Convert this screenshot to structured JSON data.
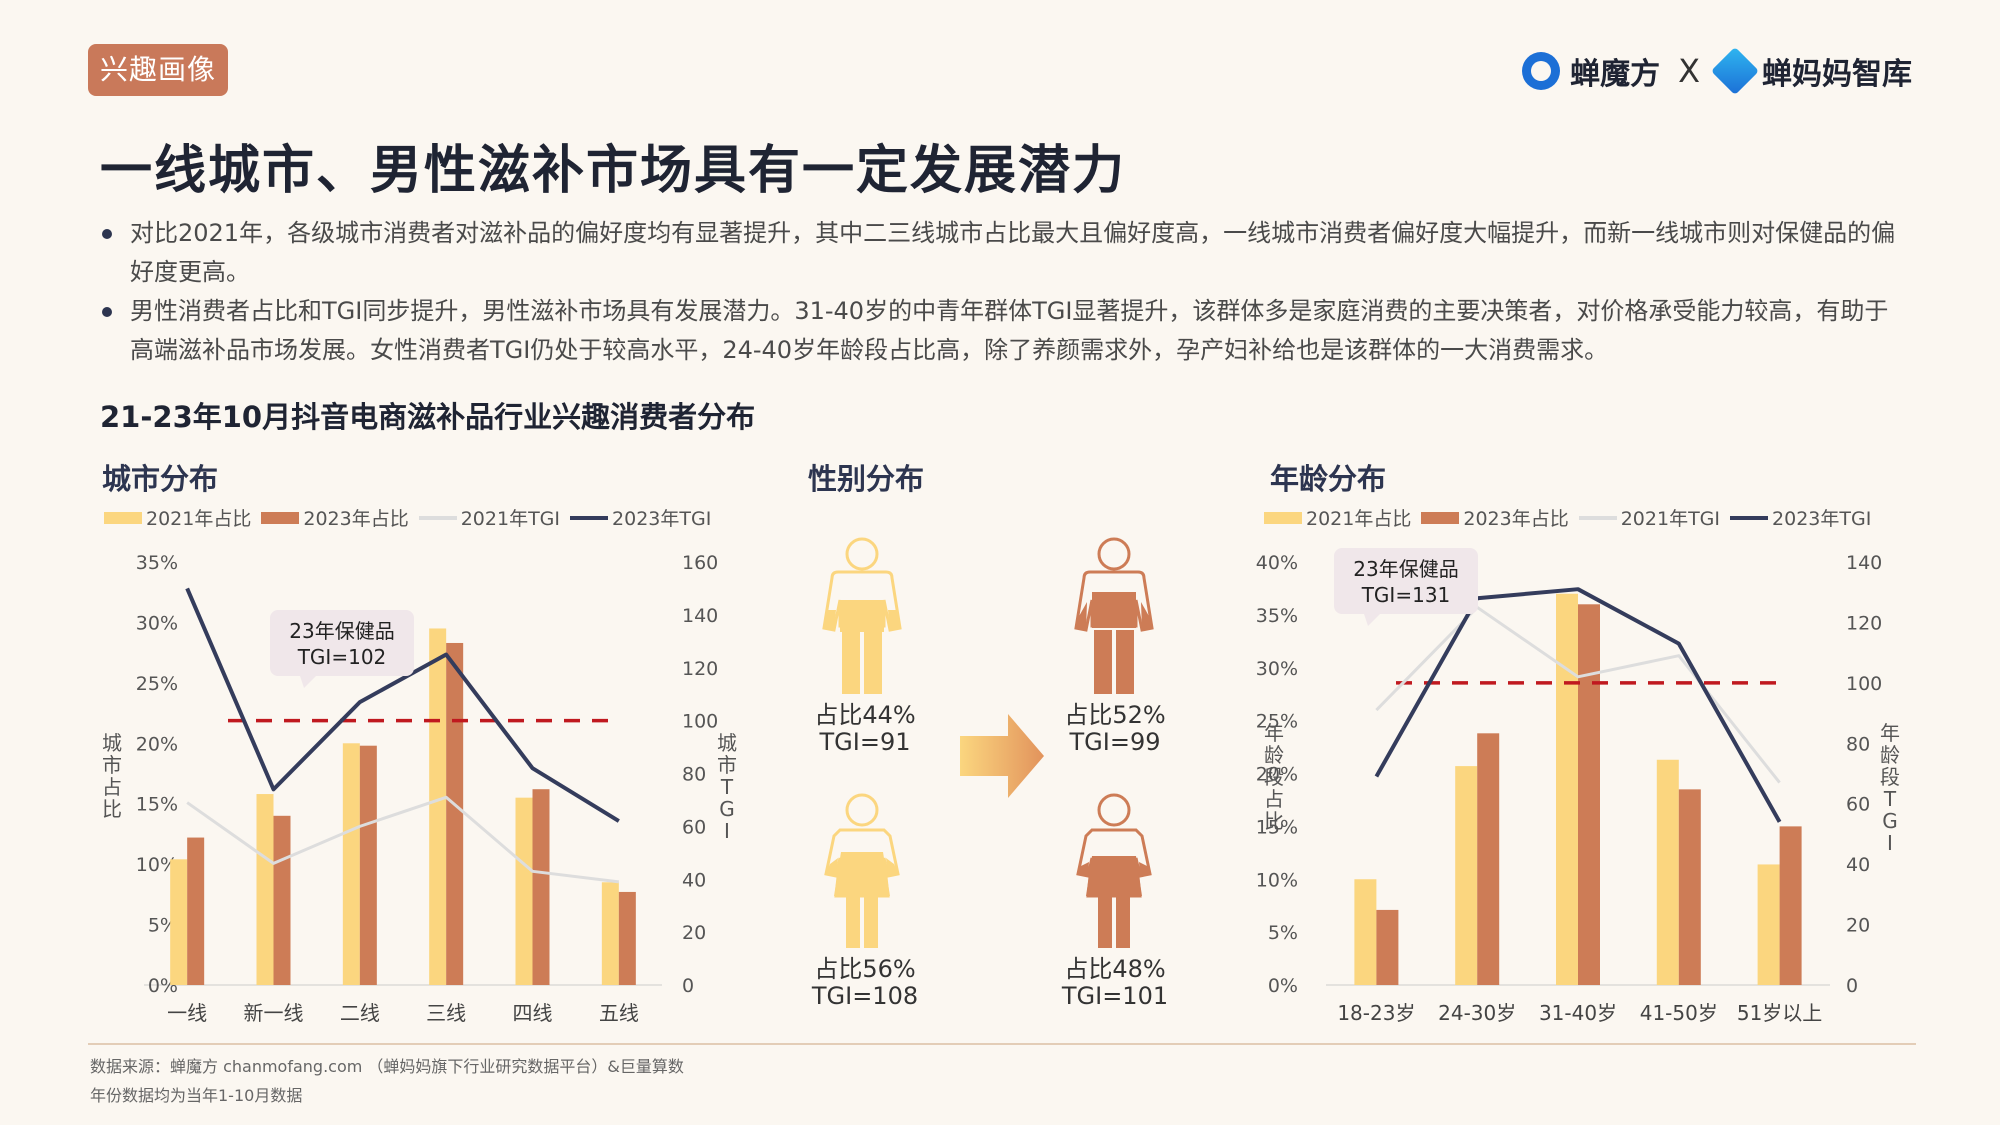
{
  "header": {
    "tag": "兴趣画像",
    "brand_left": "蝉魔方",
    "brand_sep": "X",
    "brand_right": "蝉妈妈智库"
  },
  "title": "一线城市、男性滋补市场具有一定发展潜力",
  "bullets": [
    "对比2021年，各级城市消费者对滋补品的偏好度均有显著提升，其中二三线城市占比最大且偏好度高，一线城市消费者偏好度大幅提升，而新一线城市则对保健品的偏好度更高。",
    "男性消费者占比和TGI同步提升，男性滋补市场具有发展潜力。31-40岁的中青年群体TGI显著提升，该群体多是家庭消费的主要决策者，对价格承受能力较高，有助于高端滋补品市场发展。女性消费者TGI仍处于较高水平，24-40岁年龄段占比高，除了养颜需求外，孕产妇补给也是该群体的一大消费需求。"
  ],
  "subtitle": "21-23年10月抖音电商滋补品行业兴趣消费者分布",
  "colors": {
    "bar2021": "#fbd67f",
    "bar2023": "#cd7c56",
    "tgi2021": "#dddddd",
    "tgi2023": "#343c5c",
    "ref": "#c0191f",
    "tag": "#c9795a"
  },
  "legend": {
    "s2021_share": "2021年占比",
    "s2023_share": "2023年占比",
    "s2021_tgi": "2021年TGI",
    "s2023_tgi": "2023年TGI"
  },
  "gender": {
    "title": "性别分布",
    "male_2021": {
      "line1": "占比44%",
      "line2": "TGI=91"
    },
    "male_2023": {
      "line1": "占比52%",
      "line2": "TGI=99"
    },
    "female_2021": {
      "line1": "占比56%",
      "line2": "TGI=108"
    },
    "female_2023": {
      "line1": "占比48%",
      "line2": "TGI=101"
    }
  },
  "chart_data": [
    {
      "type": "bar",
      "title": "城市分布",
      "categories": [
        "一线",
        "新一线",
        "二线",
        "三线",
        "四线",
        "五线"
      ],
      "series": [
        {
          "name": "2021年占比",
          "values": [
            10.4,
            15.8,
            20.0,
            29.5,
            15.5,
            8.5
          ],
          "axis": "left"
        },
        {
          "name": "2023年占比",
          "values": [
            12.2,
            14.0,
            19.8,
            28.3,
            16.2,
            7.7
          ],
          "axis": "left"
        },
        {
          "name": "2021年TGI",
          "values": [
            69,
            46,
            60,
            71,
            43,
            39
          ],
          "axis": "right",
          "kind": "line"
        },
        {
          "name": "2023年TGI",
          "values": [
            150,
            74,
            107,
            125,
            82,
            62
          ],
          "axis": "right",
          "kind": "line"
        }
      ],
      "ylabel": "城市占比",
      "y2label": "城市TGI",
      "ylim": [
        0,
        35
      ],
      "yticks": [
        "0%",
        "5%",
        "10%",
        "15%",
        "20%",
        "25%",
        "30%",
        "35%"
      ],
      "y2lim": [
        0,
        160
      ],
      "y2ticks": [
        "0",
        "20",
        "40",
        "60",
        "80",
        "100",
        "120",
        "140",
        "160"
      ],
      "reference_line": 100,
      "annotation": {
        "line1": "23年保健品",
        "line2": "TGI=102"
      }
    },
    {
      "type": "bar",
      "title": "年龄分布",
      "categories": [
        "18-23岁",
        "24-30岁",
        "31-40岁",
        "41-50岁",
        "51岁以上"
      ],
      "series": [
        {
          "name": "2021年占比",
          "values": [
            10.0,
            20.7,
            37.0,
            21.3,
            11.4
          ],
          "axis": "left"
        },
        {
          "name": "2023年占比",
          "values": [
            7.1,
            23.8,
            36.0,
            18.5,
            15.0
          ],
          "axis": "left"
        },
        {
          "name": "2021年TGI",
          "values": [
            91,
            125,
            102,
            109,
            67
          ],
          "axis": "right",
          "kind": "line"
        },
        {
          "name": "2023年TGI",
          "values": [
            69,
            128,
            131,
            113,
            54
          ],
          "axis": "right",
          "kind": "line"
        }
      ],
      "ylabel": "年龄段占比",
      "y2label": "年龄段TGI",
      "ylim": [
        0,
        40
      ],
      "yticks": [
        "0%",
        "5%",
        "10%",
        "15%",
        "20%",
        "25%",
        "30%",
        "35%",
        "40%"
      ],
      "y2lim": [
        0,
        140
      ],
      "y2ticks": [
        "0",
        "20",
        "40",
        "60",
        "80",
        "100",
        "120",
        "140"
      ],
      "reference_line": 100,
      "annotation": {
        "line1": "23年保健品",
        "line2": "TGI=131"
      }
    }
  ],
  "footer": {
    "source": "数据来源：蝉魔方 chanmofang.com （蝉妈妈旗下行业研究数据平台）&巨量算数",
    "note": "年份数据均为当年1-10月数据"
  }
}
